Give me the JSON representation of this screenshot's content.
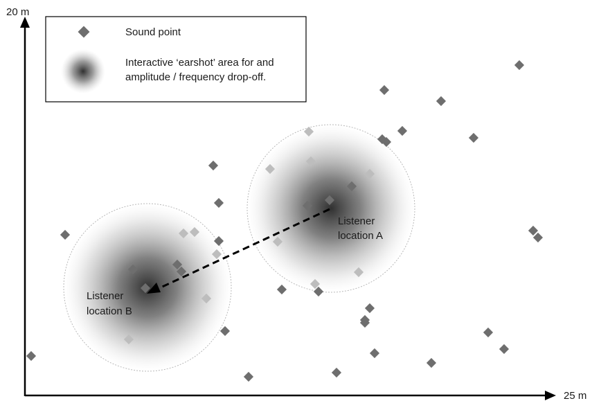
{
  "axes": {
    "y_max_label": "20 m",
    "x_max_label": "25 m"
  },
  "legend": {
    "sound_point_label": "Sound point",
    "earshot_label_line1": "Interactive ‘earshot’ area for and",
    "earshot_label_line2": "amplitude / frequency drop-off."
  },
  "listeners": {
    "a": {
      "line1": "Listener",
      "line2": "location A"
    },
    "b": {
      "line1": "Listener",
      "line2": "location B"
    }
  },
  "colors": {
    "axis": "#000000",
    "point": "#6e6e6e",
    "point_in_earshot": "#bdbdbd",
    "earshot_center": "#303030",
    "earshot_edge": "#ffffff",
    "arrow": "#000000"
  },
  "movement": {
    "from": "a",
    "to": "b",
    "style": "dashed-arrow"
  }
}
